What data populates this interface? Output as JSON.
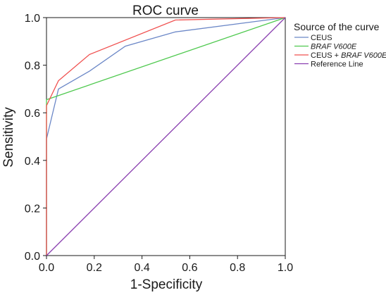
{
  "chart_data": {
    "type": "line",
    "title": "ROC curve",
    "xlabel": "1-Specificity",
    "ylabel": "Sensitivity",
    "xlim": [
      0,
      1
    ],
    "ylim": [
      0,
      1
    ],
    "x_ticks": [
      "0.0",
      "0.2",
      "0.4",
      "0.6",
      "0.8",
      "1.0"
    ],
    "y_ticks": [
      "0.0",
      "0.2",
      "0.4",
      "0.6",
      "0.8",
      "1.0"
    ],
    "grid": false,
    "legend": {
      "title": "Source of the curve",
      "placement": "top-right, outside plot"
    },
    "series": [
      {
        "name": "CEUS",
        "color": "#6b87c7",
        "italic": false,
        "points": [
          [
            0,
            0
          ],
          [
            0,
            0.49
          ],
          [
            0.05,
            0.7
          ],
          [
            0.18,
            0.775
          ],
          [
            0.33,
            0.88
          ],
          [
            0.54,
            0.94
          ],
          [
            1,
            1
          ]
        ]
      },
      {
        "name": "BRAF V600E",
        "color": "#4fc94f",
        "italic": true,
        "points": [
          [
            0,
            0
          ],
          [
            0,
            0.655
          ],
          [
            1,
            1
          ]
        ]
      },
      {
        "name": "CEUS + BRAF V600E",
        "name_prefix": "CEUS + ",
        "name_italic": "BRAF V600E",
        "color": "#f0504f",
        "italic": false,
        "points": [
          [
            0,
            0
          ],
          [
            0,
            0.63
          ],
          [
            0.05,
            0.735
          ],
          [
            0.18,
            0.845
          ],
          [
            0.54,
            0.99
          ],
          [
            1,
            1
          ]
        ]
      },
      {
        "name": "Reference Line",
        "color": "#8a3fb0",
        "italic": false,
        "points": [
          [
            0,
            0
          ],
          [
            1,
            1
          ]
        ]
      }
    ]
  }
}
